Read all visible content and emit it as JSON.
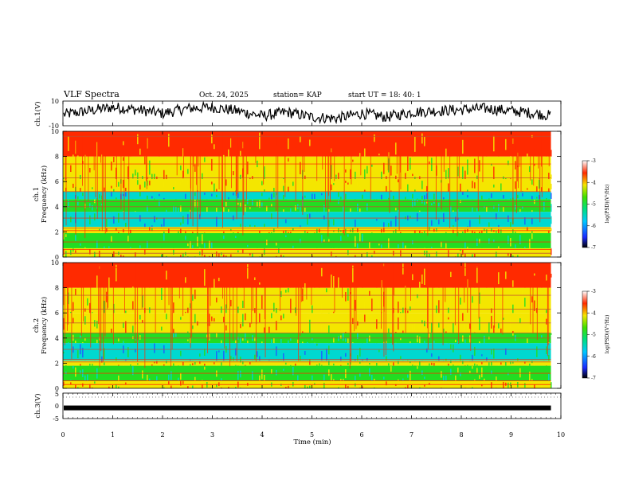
{
  "header": {
    "title": "VLF Spectra",
    "date": "Oct. 24, 2025",
    "station": "station= KAP",
    "start": "start  UT =   18: 40: 1"
  },
  "colors": {
    "red": "#ff2a00",
    "yellow": "#f4e600",
    "green": "#22dd22",
    "cyan": "#00d8d0",
    "blue": "#1f5dff",
    "axis": "#000000"
  },
  "chart_data": [
    {
      "type": "line",
      "name": "ch1-waveform",
      "ylabel": "ch.1(V)",
      "ylim": [
        -10,
        10
      ],
      "yticks": [
        {
          "v": 10,
          "label": "10"
        },
        {
          "v": -10,
          "label": "-10"
        }
      ],
      "xlim": [
        0,
        9.8
      ],
      "x": [
        0,
        0.5,
        1,
        1.5,
        2,
        2.5,
        3,
        3.5,
        4,
        4.5,
        5,
        5.5,
        6,
        6.5,
        7,
        7.5,
        8,
        8.5,
        9,
        9.5,
        9.8
      ],
      "y": [
        -1,
        2,
        5,
        3,
        0,
        4,
        5,
        2,
        -2,
        1,
        -3,
        -4,
        0,
        -3,
        1,
        2,
        3,
        4,
        2,
        0,
        -2
      ]
    },
    {
      "type": "heatmap",
      "name": "ch1-spectrogram",
      "ylabel": "ch.1",
      "ylabel2": "Frequency (kHz)",
      "ylim": [
        0,
        10
      ],
      "yticks": [
        0,
        2,
        4,
        6,
        8,
        10
      ],
      "xlim": [
        0,
        9.8
      ],
      "bands_kHz": [
        {
          "from": 0.0,
          "to": 0.7,
          "level": "yellow"
        },
        {
          "from": 0.7,
          "to": 1.9,
          "level": "green"
        },
        {
          "from": 1.9,
          "to": 2.4,
          "level": "yellow"
        },
        {
          "from": 2.4,
          "to": 3.6,
          "level": "cyan"
        },
        {
          "from": 3.6,
          "to": 4.6,
          "level": "green"
        },
        {
          "from": 4.6,
          "to": 5.2,
          "level": "cyan"
        },
        {
          "from": 5.2,
          "to": 6.2,
          "level": "yellow"
        },
        {
          "from": 6.2,
          "to": 8.0,
          "level": "yellow-red"
        },
        {
          "from": 8.0,
          "to": 10.0,
          "level": "red"
        }
      ],
      "colorbar": {
        "label": "log(PSD)(V²/Hz)",
        "min": -7,
        "max": -3,
        "ticks": [
          {
            "v": -3,
            "label": "-3"
          },
          {
            "v": -4,
            "label": "-4"
          },
          {
            "v": -5,
            "label": "-5"
          },
          {
            "v": -6,
            "label": "-6"
          },
          {
            "v": -7,
            "label": "-7"
          }
        ]
      }
    },
    {
      "type": "heatmap",
      "name": "ch2-spectrogram",
      "ylabel": "ch.2",
      "ylabel2": "Frequency (kHz)",
      "ylim": [
        0,
        10
      ],
      "yticks": [
        0,
        2,
        4,
        6,
        8,
        10
      ],
      "xlim": [
        0,
        9.8
      ],
      "bands_kHz": [
        {
          "from": 0.0,
          "to": 0.6,
          "level": "yellow"
        },
        {
          "from": 0.6,
          "to": 1.8,
          "level": "green"
        },
        {
          "from": 1.8,
          "to": 2.2,
          "level": "yellow"
        },
        {
          "from": 2.2,
          "to": 3.6,
          "level": "cyan"
        },
        {
          "from": 3.6,
          "to": 4.4,
          "level": "green"
        },
        {
          "from": 4.4,
          "to": 6.0,
          "level": "yellow"
        },
        {
          "from": 6.0,
          "to": 8.0,
          "level": "yellow-red"
        },
        {
          "from": 8.0,
          "to": 10.0,
          "level": "red"
        }
      ],
      "colorbar": {
        "label": "log(PSD)(V²/Hz)",
        "min": -7,
        "max": -3,
        "ticks": [
          {
            "v": -3,
            "label": "-3"
          },
          {
            "v": -4,
            "label": "-4"
          },
          {
            "v": -5,
            "label": "-5"
          },
          {
            "v": -6,
            "label": "-6"
          },
          {
            "v": -7,
            "label": "-7"
          }
        ]
      }
    },
    {
      "type": "line",
      "name": "ch3-waveform",
      "ylabel": "ch.3(V)",
      "ylim": [
        -5,
        5
      ],
      "yticks": [
        {
          "v": 5,
          "label": "5"
        },
        {
          "v": 0,
          "label": "0"
        },
        {
          "v": -5,
          "label": "-5"
        }
      ],
      "xlim": [
        0,
        9.8
      ],
      "x": [
        0,
        9.8
      ],
      "y": [
        -0.8,
        -0.8
      ]
    }
  ],
  "xaxis": {
    "label": "Time (min)",
    "ticks": [
      {
        "v": 0,
        "label": "0"
      },
      {
        "v": 1,
        "label": "1"
      },
      {
        "v": 2,
        "label": "2"
      },
      {
        "v": 3,
        "label": "3"
      },
      {
        "v": 4,
        "label": "4"
      },
      {
        "v": 5,
        "label": "5"
      },
      {
        "v": 6,
        "label": "6"
      },
      {
        "v": 7,
        "label": "7"
      },
      {
        "v": 8,
        "label": "8"
      },
      {
        "v": 9,
        "label": "9"
      },
      {
        "v": 10,
        "label": "10"
      }
    ],
    "range": [
      0,
      10
    ]
  }
}
